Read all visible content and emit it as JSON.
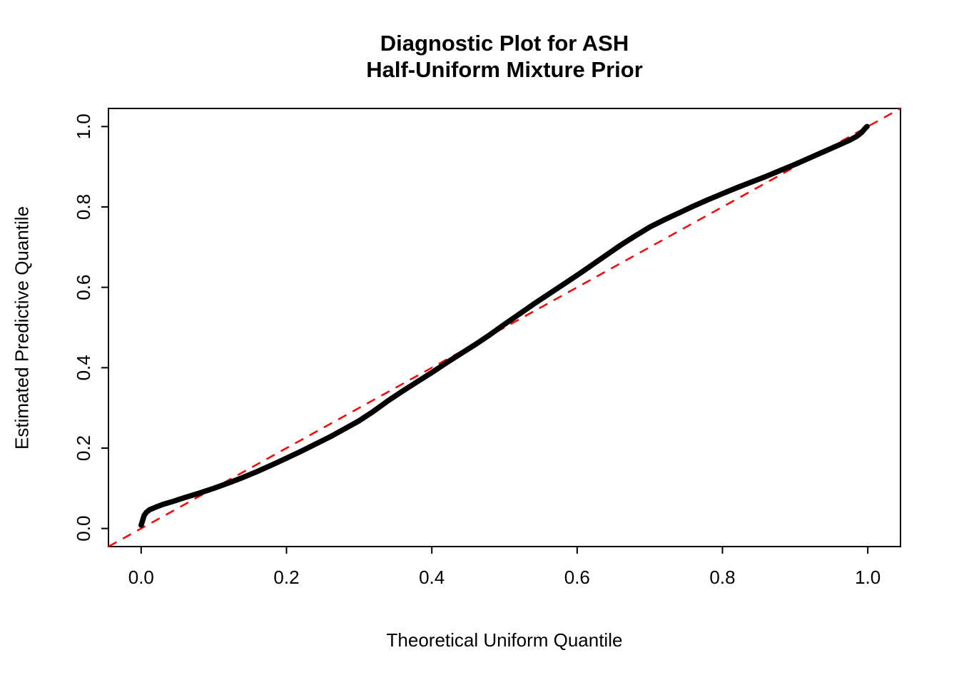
{
  "title": {
    "line1": "Diagnostic Plot for ASH",
    "line2": "Half-Uniform Mixture Prior"
  },
  "chart_data": {
    "type": "line",
    "title": "Diagnostic Plot for ASH\nHalf-Uniform Mixture Prior",
    "xlabel": "Theoretical Uniform Quantile",
    "ylabel": "Estimated Predictive Quantile",
    "xlim": [
      -0.045,
      1.045
    ],
    "ylim": [
      -0.045,
      1.045
    ],
    "x_ticks": [
      0.0,
      0.2,
      0.4,
      0.6,
      0.8,
      1.0
    ],
    "y_ticks": [
      0.0,
      0.2,
      0.4,
      0.6,
      0.8,
      1.0
    ],
    "grid": false,
    "legend": "none",
    "colors": {
      "curve": "#000000",
      "reference": "#FF0000",
      "frame": "#000000",
      "text": "#000000"
    },
    "series": [
      {
        "name": "estimated-predictive-quantiles",
        "type": "thick-solid-curve",
        "color": "#000000",
        "points": [
          [
            0.0,
            0.008
          ],
          [
            0.002,
            0.02
          ],
          [
            0.004,
            0.032
          ],
          [
            0.007,
            0.04
          ],
          [
            0.012,
            0.047
          ],
          [
            0.02,
            0.053
          ],
          [
            0.03,
            0.06
          ],
          [
            0.045,
            0.068
          ],
          [
            0.06,
            0.077
          ],
          [
            0.08,
            0.088
          ],
          [
            0.1,
            0.1
          ],
          [
            0.12,
            0.113
          ],
          [
            0.14,
            0.127
          ],
          [
            0.16,
            0.142
          ],
          [
            0.18,
            0.158
          ],
          [
            0.2,
            0.175
          ],
          [
            0.22,
            0.192
          ],
          [
            0.24,
            0.21
          ],
          [
            0.26,
            0.228
          ],
          [
            0.28,
            0.248
          ],
          [
            0.3,
            0.268
          ],
          [
            0.32,
            0.292
          ],
          [
            0.34,
            0.318
          ],
          [
            0.36,
            0.342
          ],
          [
            0.38,
            0.365
          ],
          [
            0.4,
            0.388
          ],
          [
            0.42,
            0.412
          ],
          [
            0.44,
            0.435
          ],
          [
            0.46,
            0.458
          ],
          [
            0.48,
            0.482
          ],
          [
            0.5,
            0.508
          ],
          [
            0.52,
            0.533
          ],
          [
            0.54,
            0.558
          ],
          [
            0.56,
            0.582
          ],
          [
            0.58,
            0.606
          ],
          [
            0.6,
            0.63
          ],
          [
            0.62,
            0.655
          ],
          [
            0.64,
            0.68
          ],
          [
            0.66,
            0.705
          ],
          [
            0.68,
            0.728
          ],
          [
            0.7,
            0.75
          ],
          [
            0.72,
            0.768
          ],
          [
            0.74,
            0.785
          ],
          [
            0.76,
            0.802
          ],
          [
            0.78,
            0.818
          ],
          [
            0.8,
            0.833
          ],
          [
            0.82,
            0.848
          ],
          [
            0.84,
            0.862
          ],
          [
            0.86,
            0.876
          ],
          [
            0.88,
            0.891
          ],
          [
            0.9,
            0.906
          ],
          [
            0.92,
            0.922
          ],
          [
            0.94,
            0.938
          ],
          [
            0.96,
            0.954
          ],
          [
            0.975,
            0.966
          ],
          [
            0.985,
            0.976
          ],
          [
            0.992,
            0.986
          ],
          [
            0.996,
            0.995
          ],
          [
            0.999,
            1.0
          ]
        ]
      },
      {
        "name": "reference-diagonal",
        "type": "dashed-line",
        "color": "#FF0000",
        "points": [
          [
            -0.045,
            -0.045
          ],
          [
            1.045,
            1.045
          ]
        ]
      }
    ]
  }
}
